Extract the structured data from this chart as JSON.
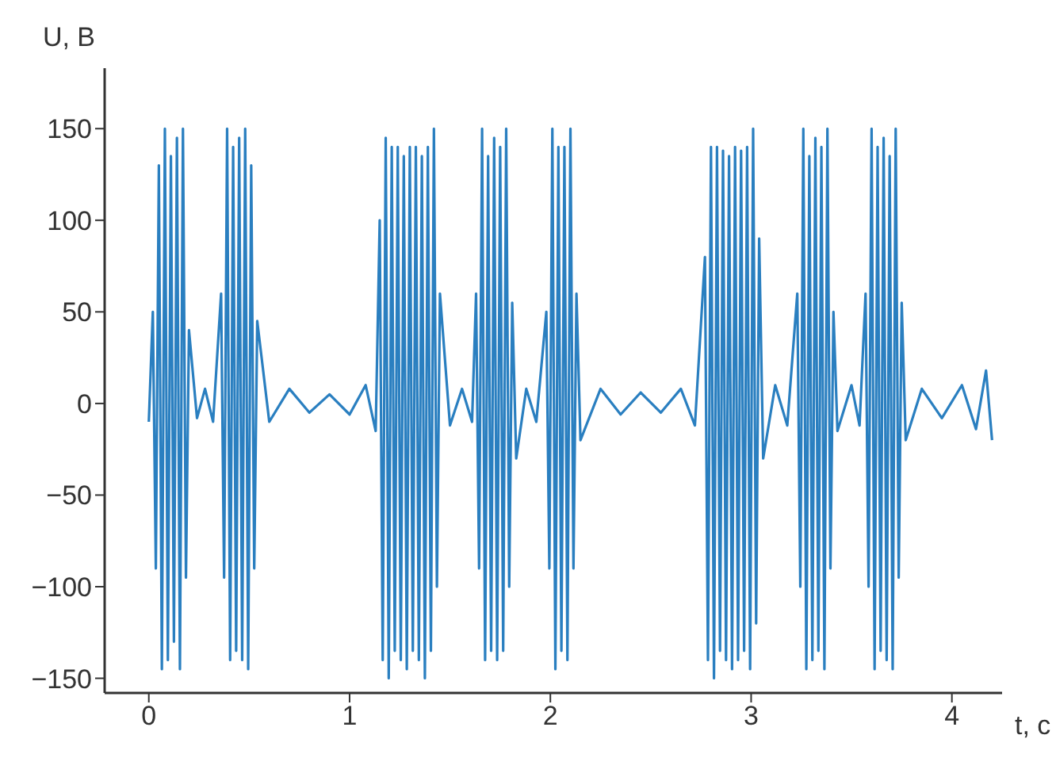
{
  "chart_data": {
    "type": "line",
    "xlabel": "t, с",
    "ylabel": "U, В",
    "xlim": [
      -0.22,
      4.25
    ],
    "ylim": [
      -158,
      183
    ],
    "xticks": [
      0,
      1,
      2,
      3,
      4
    ],
    "yticks": [
      -150,
      -100,
      -50,
      0,
      50,
      100,
      150
    ],
    "grid": false,
    "legend": false,
    "x": [
      0.0,
      0.02,
      0.035,
      0.05,
      0.065,
      0.08,
      0.095,
      0.11,
      0.125,
      0.14,
      0.155,
      0.17,
      0.185,
      0.2,
      0.24,
      0.28,
      0.32,
      0.36,
      0.375,
      0.39,
      0.405,
      0.42,
      0.435,
      0.45,
      0.465,
      0.48,
      0.495,
      0.51,
      0.525,
      0.54,
      0.6,
      0.7,
      0.8,
      0.9,
      1.0,
      1.08,
      1.13,
      1.15,
      1.165,
      1.18,
      1.195,
      1.21,
      1.225,
      1.24,
      1.255,
      1.27,
      1.285,
      1.3,
      1.315,
      1.33,
      1.345,
      1.36,
      1.375,
      1.39,
      1.405,
      1.42,
      1.435,
      1.45,
      1.5,
      1.56,
      1.61,
      1.63,
      1.645,
      1.66,
      1.675,
      1.69,
      1.705,
      1.72,
      1.735,
      1.75,
      1.765,
      1.78,
      1.795,
      1.81,
      1.83,
      1.88,
      1.93,
      1.98,
      1.995,
      2.01,
      2.025,
      2.04,
      2.055,
      2.07,
      2.085,
      2.1,
      2.115,
      2.13,
      2.15,
      2.25,
      2.35,
      2.45,
      2.55,
      2.65,
      2.72,
      2.77,
      2.785,
      2.8,
      2.815,
      2.83,
      2.845,
      2.86,
      2.875,
      2.89,
      2.905,
      2.92,
      2.935,
      2.95,
      2.965,
      2.98,
      2.995,
      3.01,
      3.025,
      3.04,
      3.06,
      3.12,
      3.18,
      3.23,
      3.245,
      3.26,
      3.275,
      3.29,
      3.305,
      3.32,
      3.335,
      3.35,
      3.365,
      3.38,
      3.395,
      3.41,
      3.43,
      3.5,
      3.54,
      3.57,
      3.585,
      3.6,
      3.615,
      3.63,
      3.645,
      3.66,
      3.675,
      3.69,
      3.705,
      3.72,
      3.735,
      3.75,
      3.77,
      3.85,
      3.95,
      4.05,
      4.12,
      4.17,
      4.2
    ],
    "series": [
      {
        "color": "#2a7fc0",
        "values": [
          -10,
          50,
          -90,
          130,
          -145,
          150,
          -140,
          135,
          -130,
          145,
          -145,
          150,
          -95,
          40,
          -8,
          8,
          -10,
          60,
          -95,
          150,
          -140,
          140,
          -135,
          145,
          -140,
          150,
          -145,
          130,
          -90,
          45,
          -10,
          8,
          -5,
          5,
          -6,
          10,
          -15,
          100,
          -140,
          145,
          -150,
          140,
          -135,
          140,
          -140,
          135,
          -145,
          140,
          -135,
          140,
          -140,
          135,
          -150,
          140,
          -135,
          150,
          -100,
          60,
          -12,
          8,
          -10,
          60,
          -90,
          150,
          -140,
          135,
          -135,
          145,
          -140,
          140,
          -135,
          150,
          -100,
          55,
          -30,
          8,
          -10,
          50,
          -90,
          150,
          -145,
          140,
          -135,
          140,
          -140,
          150,
          -90,
          60,
          -20,
          8,
          -6,
          6,
          -5,
          8,
          -12,
          80,
          -140,
          140,
          -150,
          140,
          -135,
          138,
          -140,
          135,
          -145,
          140,
          -140,
          138,
          -135,
          140,
          -145,
          150,
          -120,
          90,
          -30,
          10,
          -12,
          60,
          -100,
          150,
          -145,
          135,
          -140,
          145,
          -135,
          140,
          -145,
          150,
          -90,
          50,
          -15,
          10,
          -12,
          60,
          -100,
          150,
          -145,
          140,
          -135,
          145,
          -140,
          135,
          -145,
          150,
          -95,
          55,
          -20,
          8,
          -8,
          10,
          -14,
          18,
          -20
        ]
      }
    ]
  }
}
